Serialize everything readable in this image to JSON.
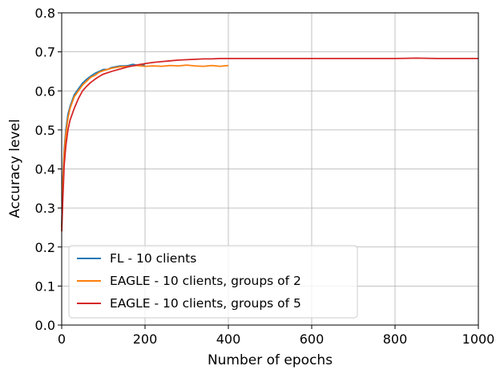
{
  "chart_data": {
    "type": "line",
    "xlabel": "Number of epochs",
    "ylabel": "Accuracy level",
    "xlim": [
      0,
      1000
    ],
    "ylim": [
      0.0,
      0.8
    ],
    "xticks": [
      0,
      200,
      400,
      600,
      800,
      1000
    ],
    "yticks": [
      0.0,
      0.1,
      0.2,
      0.3,
      0.4,
      0.5,
      0.6,
      0.7,
      0.8
    ],
    "xtick_labels": [
      "0",
      "200",
      "400",
      "600",
      "800",
      "1000"
    ],
    "ytick_labels": [
      "0.0",
      "0.1",
      "0.2",
      "0.3",
      "0.4",
      "0.5",
      "0.6",
      "0.7",
      "0.8"
    ],
    "grid": true,
    "legend_position": "lower-left",
    "series": [
      {
        "name": "FL - 10 clients",
        "color": "#1f77b4",
        "x": [
          0,
          3,
          6,
          10,
          15,
          20,
          25,
          30,
          40,
          50,
          60,
          70,
          80,
          90,
          100,
          110,
          120,
          130,
          140,
          150,
          160,
          170,
          180,
          190,
          200
        ],
        "y": [
          0.25,
          0.38,
          0.45,
          0.5,
          0.54,
          0.56,
          0.575,
          0.59,
          0.605,
          0.62,
          0.63,
          0.638,
          0.645,
          0.65,
          0.655,
          0.655,
          0.66,
          0.662,
          0.664,
          0.664,
          0.665,
          0.668,
          0.666,
          0.668,
          0.665
        ]
      },
      {
        "name": "EAGLE - 10 clients, groups of 2",
        "color": "#ff7f0e",
        "x": [
          0,
          3,
          6,
          10,
          15,
          20,
          25,
          30,
          40,
          50,
          60,
          70,
          80,
          90,
          100,
          120,
          140,
          160,
          180,
          200,
          220,
          240,
          260,
          280,
          300,
          320,
          340,
          360,
          380,
          400
        ],
        "y": [
          0.25,
          0.37,
          0.44,
          0.49,
          0.53,
          0.555,
          0.57,
          0.585,
          0.6,
          0.615,
          0.625,
          0.635,
          0.64,
          0.648,
          0.652,
          0.658,
          0.662,
          0.663,
          0.665,
          0.663,
          0.664,
          0.663,
          0.665,
          0.664,
          0.666,
          0.664,
          0.663,
          0.665,
          0.663,
          0.665
        ]
      },
      {
        "name": "EAGLE - 10 clients, groups of 5",
        "color": "#d62728",
        "x": [
          0,
          3,
          6,
          10,
          15,
          20,
          25,
          30,
          40,
          50,
          60,
          70,
          80,
          90,
          100,
          120,
          140,
          160,
          180,
          200,
          220,
          240,
          260,
          280,
          300,
          320,
          340,
          360,
          380,
          400,
          450,
          500,
          550,
          600,
          650,
          700,
          750,
          800,
          850,
          900,
          950,
          1000
        ],
        "y": [
          0.24,
          0.33,
          0.41,
          0.46,
          0.5,
          0.525,
          0.54,
          0.555,
          0.58,
          0.6,
          0.612,
          0.622,
          0.63,
          0.637,
          0.643,
          0.65,
          0.656,
          0.662,
          0.666,
          0.67,
          0.673,
          0.675,
          0.677,
          0.679,
          0.68,
          0.681,
          0.682,
          0.682,
          0.683,
          0.683,
          0.683,
          0.683,
          0.683,
          0.683,
          0.683,
          0.683,
          0.683,
          0.683,
          0.684,
          0.683,
          0.683,
          0.683
        ]
      }
    ]
  }
}
